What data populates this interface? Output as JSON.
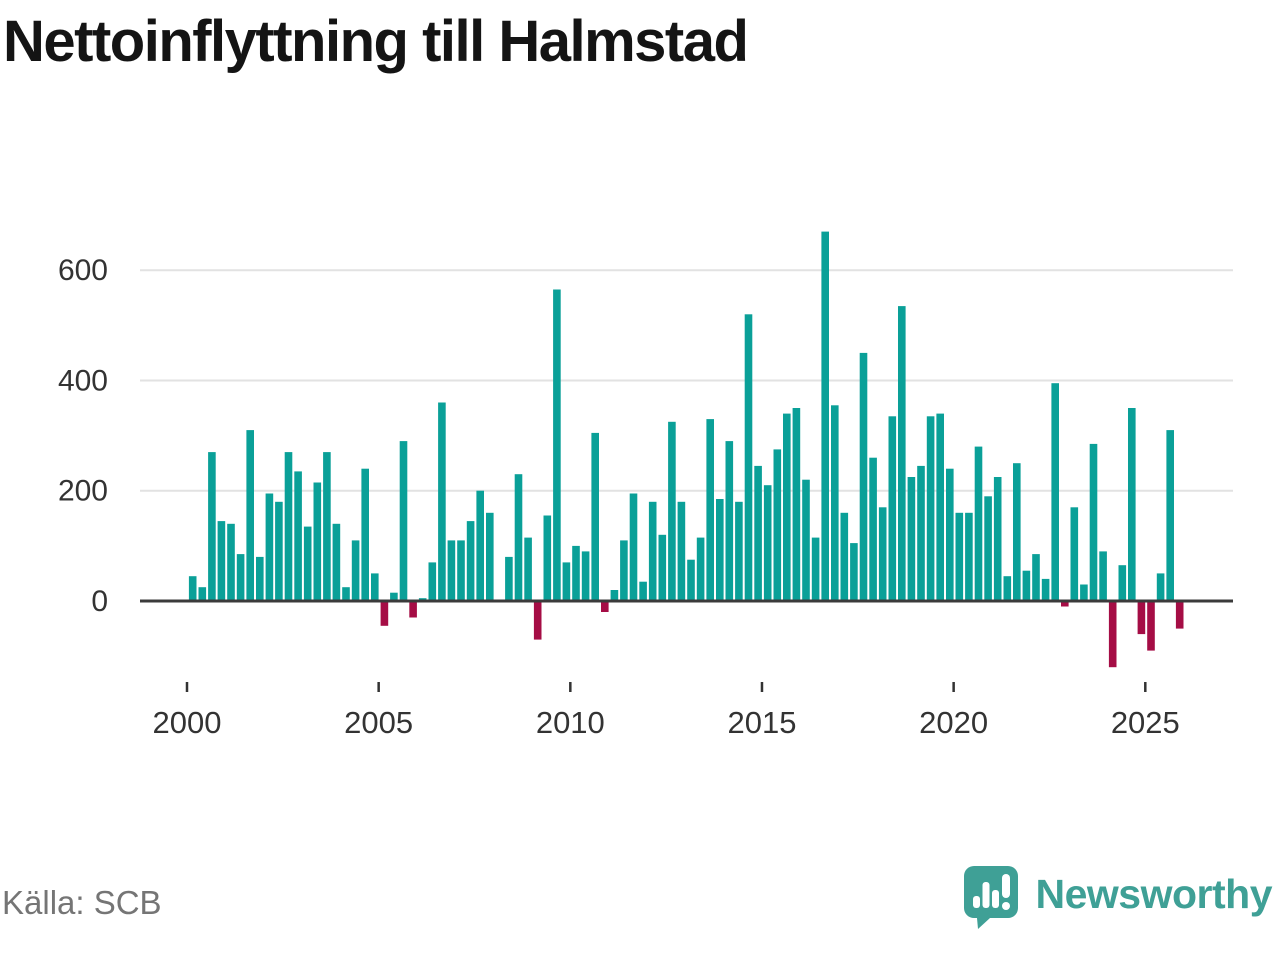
{
  "header": {
    "title": "Nettoinflyttning till Halmstad"
  },
  "footer": {
    "source": "Källa: SCB",
    "brand": "Newsworthy"
  },
  "colors": {
    "positive_bar": "#0aa098",
    "negative_bar": "#a50d45",
    "axis": "#3b3b3b",
    "gridline": "#e2e2e2",
    "tick_text": "#333333",
    "title_text": "#141414",
    "source_text": "#757575",
    "brand_teal": "#3fa096"
  },
  "chart_data": {
    "type": "bar",
    "title": "Nettoinflyttning till Halmstad",
    "xlabel": "",
    "ylabel": "",
    "y_ticks": [
      0,
      200,
      400,
      600
    ],
    "x_tick_years": [
      2000,
      2005,
      2010,
      2015,
      2020,
      2025
    ],
    "ylim": [
      -140,
      700
    ],
    "grid": "horizontal",
    "legend": "none",
    "start_year": 2000,
    "period": "quarterly",
    "values": [
      45,
      25,
      270,
      145,
      140,
      85,
      310,
      80,
      195,
      180,
      270,
      235,
      135,
      215,
      270,
      140,
      25,
      110,
      240,
      50,
      -45,
      15,
      290,
      -30,
      5,
      70,
      360,
      110,
      110,
      145,
      200,
      160,
      0,
      80,
      230,
      115,
      -70,
      155,
      565,
      70,
      100,
      90,
      305,
      -20,
      20,
      110,
      195,
      35,
      180,
      120,
      325,
      180,
      75,
      115,
      330,
      185,
      290,
      180,
      520,
      245,
      210,
      275,
      340,
      350,
      220,
      115,
      670,
      355,
      160,
      105,
      450,
      260,
      170,
      335,
      535,
      225,
      245,
      335,
      340,
      240,
      160,
      160,
      280,
      190,
      225,
      45,
      250,
      55,
      85,
      40,
      395,
      -10,
      170,
      30,
      285,
      90,
      -120,
      65,
      350,
      -60,
      -90,
      50,
      310,
      -50
    ]
  }
}
